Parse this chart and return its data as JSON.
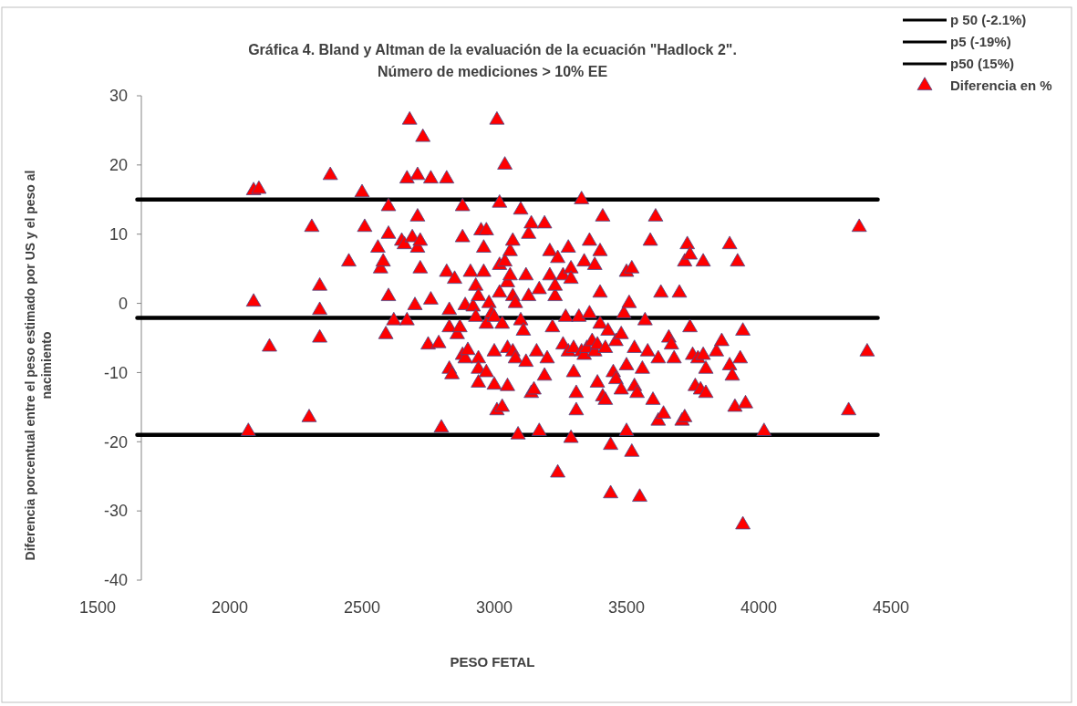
{
  "chart_data": {
    "type": "scatter",
    "title": "Gráfica 4. Bland y Altman de la  evaluación de la ecuación \"Hadlock 2\".\nNúmero de mediciones > 10% EE",
    "xlabel": "PESO FETAL",
    "ylabel": "Diferencia porcentual entre el  peso estimado por US y el peso al\nnacimiento",
    "xlim": [
      1500,
      4500
    ],
    "xticks": [
      1500,
      2000,
      2500,
      3000,
      3500,
      4000,
      4500
    ],
    "ylim": [
      -40,
      30
    ],
    "yticks": [
      -40,
      -30,
      -20,
      -10,
      0,
      10,
      20,
      30
    ],
    "grid": false,
    "legend": "top right",
    "marker": "triangle",
    "series": [
      {
        "name": "p 50 (-2.1%)",
        "type": "line",
        "marker": "none",
        "color": "#000000",
        "x": [
          1650,
          4450
        ],
        "values": [
          -2.1,
          -2.1
        ]
      },
      {
        "name": "p5 (-19%)",
        "type": "line",
        "marker": "none",
        "color": "#000000",
        "x": [
          1650,
          4450
        ],
        "values": [
          -19,
          -19
        ]
      },
      {
        "name": "p50 (15%)",
        "type": "line",
        "marker": "none",
        "color": "#000000",
        "x": [
          1650,
          4450
        ],
        "values": [
          15,
          15
        ]
      },
      {
        "name": "Diferencia en %",
        "color": "#ff0000",
        "x": [
          2070,
          2090,
          2110,
          2090,
          2150,
          2300,
          2310,
          2340,
          2340,
          2340,
          2380,
          2450,
          2500,
          2510,
          2560,
          2570,
          2580,
          2590,
          2600,
          2600,
          2600,
          2620,
          2650,
          2660,
          2670,
          2670,
          2680,
          2690,
          2700,
          2710,
          2710,
          2710,
          2720,
          2720,
          2730,
          2750,
          2760,
          2760,
          2790,
          2800,
          2820,
          2820,
          2830,
          2830,
          2830,
          2840,
          2850,
          2860,
          2870,
          2880,
          2880,
          2880,
          2890,
          2890,
          2900,
          2910,
          2920,
          2930,
          2930,
          2940,
          2940,
          2940,
          2940,
          2950,
          2960,
          2960,
          2970,
          2970,
          2970,
          2980,
          2990,
          3000,
          3000,
          3000,
          3010,
          3010,
          3020,
          3020,
          3020,
          3030,
          3030,
          3040,
          3040,
          3050,
          3050,
          3050,
          3060,
          3060,
          3070,
          3070,
          3070,
          3080,
          3080,
          3090,
          3100,
          3100,
          3110,
          3120,
          3120,
          3130,
          3130,
          3140,
          3140,
          3150,
          3160,
          3170,
          3170,
          3190,
          3190,
          3200,
          3210,
          3210,
          3220,
          3230,
          3230,
          3240,
          3240,
          3260,
          3260,
          3270,
          3280,
          3280,
          3290,
          3290,
          3290,
          3300,
          3300,
          3310,
          3310,
          3320,
          3330,
          3330,
          3340,
          3340,
          3350,
          3360,
          3360,
          3370,
          3380,
          3380,
          3390,
          3390,
          3400,
          3400,
          3400,
          3410,
          3410,
          3420,
          3420,
          3430,
          3440,
          3440,
          3450,
          3460,
          3460,
          3480,
          3480,
          3490,
          3500,
          3500,
          3500,
          3510,
          3520,
          3520,
          3530,
          3530,
          3540,
          3550,
          3560,
          3570,
          3580,
          3590,
          3600,
          3610,
          3620,
          3620,
          3630,
          3640,
          3660,
          3670,
          3680,
          3700,
          3710,
          3720,
          3720,
          3730,
          3740,
          3740,
          3750,
          3760,
          3770,
          3780,
          3790,
          3790,
          3800,
          3800,
          3840,
          3860,
          3890,
          3890,
          3900,
          3910,
          3920,
          3930,
          3940,
          3940,
          3950,
          4020,
          4340,
          4380,
          4410
        ],
        "values": [
          -18.5,
          16.3,
          16.5,
          0.2,
          -6.3,
          -16.5,
          11,
          2.5,
          -1,
          -5,
          18.5,
          6,
          16,
          11,
          8,
          5,
          6,
          -4.5,
          1,
          10,
          14,
          -2.5,
          9,
          8.5,
          -2.5,
          18,
          26.5,
          9.5,
          -0.3,
          8,
          12.5,
          18.5,
          5,
          9,
          24,
          -6,
          18,
          0.5,
          -5.8,
          -18,
          4.5,
          18,
          -1,
          -9.5,
          -3.5,
          -10.3,
          3.5,
          -4.5,
          -3.5,
          9.5,
          -7.5,
          14,
          -8,
          -0.3,
          -6.8,
          4.5,
          -0.5,
          -2,
          2.5,
          -11.5,
          1,
          -8,
          -9.5,
          10.5,
          8,
          4.5,
          -3,
          -10,
          10.5,
          0,
          -1.5,
          -7,
          -11.8,
          -2,
          26.5,
          -15.5,
          14.5,
          5.5,
          1.5,
          -15,
          -3,
          20,
          6,
          -6.5,
          3,
          -12,
          7.5,
          4,
          -7,
          1,
          9,
          -8,
          0,
          -19,
          13.5,
          -2.5,
          -4,
          -8.5,
          4,
          10,
          1,
          11.5,
          -13,
          -12.5,
          -7,
          -18.5,
          2,
          11.5,
          -10.5,
          -8,
          7.5,
          4,
          -3.5,
          1,
          2.5,
          6.5,
          -24.5,
          -6,
          4,
          -2,
          -7,
          8,
          -19.5,
          5,
          3.5,
          -10,
          -6.5,
          -15.5,
          -13,
          -2,
          15,
          -7,
          -7.5,
          6,
          -6.5,
          -1.5,
          9,
          -5.5,
          -7,
          5.5,
          -11.5,
          -6,
          -3,
          7.5,
          1.5,
          12.5,
          -13.5,
          -14,
          -6.5,
          -4,
          -20.5,
          -27.5,
          -10,
          -11,
          -5.5,
          -4.5,
          -12.5,
          -1.5,
          4.5,
          -9,
          -18.5,
          0,
          5,
          -21.5,
          -12,
          -6.5,
          -13,
          -28,
          -9.5,
          -2.5,
          -7,
          9,
          -14,
          12.5,
          -8,
          -17,
          1.5,
          -16,
          -5,
          -6,
          -8,
          1.5,
          -17,
          -16.5,
          6,
          8.5,
          7,
          -3.5,
          -7.5,
          -12,
          -8,
          -12.5,
          6,
          -7.5,
          -13,
          -9.5,
          -7,
          -5.5,
          8.5,
          -9,
          -10.5,
          -15,
          6,
          -8,
          -32,
          -4,
          -14.5,
          -18.5,
          -15.5,
          11,
          -7
        ]
      }
    ]
  }
}
